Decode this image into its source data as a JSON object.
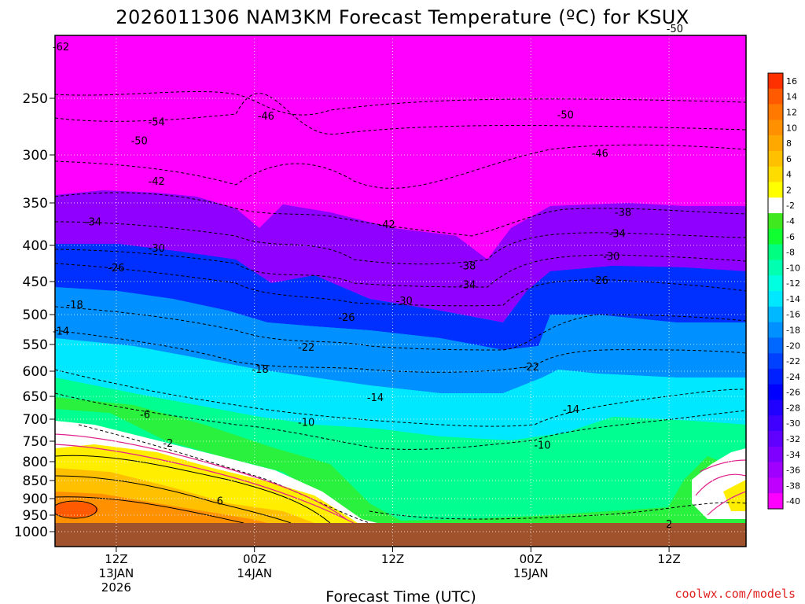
{
  "chart_data": {
    "type": "heatmap",
    "title": "2026011306 NAM3KM Forecast Temperature (ºC) for KSUX",
    "xlabel": "Forecast Time (UTC)",
    "credit": "coolwx.com/models",
    "y_ticks": [
      "250",
      "300",
      "350",
      "400",
      "450",
      "500",
      "550",
      "600",
      "650",
      "700",
      "750",
      "800",
      "850",
      "900",
      "950",
      "1000"
    ],
    "y_tick_values": [
      250,
      300,
      350,
      400,
      450,
      500,
      550,
      600,
      650,
      700,
      750,
      800,
      850,
      900,
      950,
      1000
    ],
    "x_ticks": [
      {
        "label": "12Z",
        "sub1": "13JAN",
        "sub2": "2026",
        "hour": 6
      },
      {
        "label": "00Z",
        "sub1": "14JAN",
        "sub2": "",
        "hour": 18
      },
      {
        "label": "12Z",
        "sub1": "",
        "sub2": "",
        "hour": 30
      },
      {
        "label": "00Z",
        "sub1": "15JAN",
        "sub2": "",
        "hour": 42
      },
      {
        "label": "12Z",
        "sub1": "",
        "sub2": "",
        "hour": 54
      }
    ],
    "xlim": [
      0,
      60
    ],
    "colorbar": {
      "labels": [
        "16",
        "14",
        "12",
        "10",
        "8",
        "6",
        "4",
        "2",
        "-2",
        "-4",
        "-6",
        "-8",
        "-10",
        "-12",
        "-14",
        "-16",
        "-18",
        "-20",
        "-22",
        "-24",
        "-26",
        "-28",
        "-30",
        "-32",
        "-34",
        "-36",
        "-38",
        "-40"
      ],
      "colors": [
        "#ff3000",
        "#ff5a00",
        "#ff7800",
        "#ff9000",
        "#ffa800",
        "#ffc000",
        "#ffdc00",
        "#ffff00",
        "#ffffff",
        "#40e820",
        "#10ff30",
        "#00ff80",
        "#00ffb0",
        "#00ffe0",
        "#00e8ff",
        "#00b8ff",
        "#0090ff",
        "#0068ff",
        "#0040ff",
        "#0020ff",
        "#0000ff",
        "#2000ff",
        "#4000ff",
        "#6000ff",
        "#8000ff",
        "#a000ff",
        "#c000ff",
        "#ff00ff"
      ]
    },
    "isotherm_labels": [
      {
        "text": "-62",
        "t": 1.2,
        "p": 212
      },
      {
        "text": "-54",
        "t": 9.5,
        "p": 270
      },
      {
        "text": "-50",
        "t": 8,
        "p": 287
      },
      {
        "text": "-46",
        "t": 19,
        "p": 265
      },
      {
        "text": "-50",
        "t": 45,
        "p": 264
      },
      {
        "text": "-50",
        "t": 54.5,
        "p": 200
      },
      {
        "text": "-46",
        "t": 48,
        "p": 299
      },
      {
        "text": "-42",
        "t": 9.5,
        "p": 327
      },
      {
        "text": "-42",
        "t": 29.5,
        "p": 375
      },
      {
        "text": "-38",
        "t": 50,
        "p": 361
      },
      {
        "text": "-38",
        "t": 36.5,
        "p": 428
      },
      {
        "text": "-34",
        "t": 4,
        "p": 372
      },
      {
        "text": "-34",
        "t": 49.5,
        "p": 386
      },
      {
        "text": "-34",
        "t": 36.5,
        "p": 455
      },
      {
        "text": "-30",
        "t": 9.5,
        "p": 404
      },
      {
        "text": "-30",
        "t": 49,
        "p": 415
      },
      {
        "text": "-30",
        "t": 31,
        "p": 479
      },
      {
        "text": "-26",
        "t": 6,
        "p": 431
      },
      {
        "text": "-26",
        "t": 48,
        "p": 449
      },
      {
        "text": "-26",
        "t": 26,
        "p": 505
      },
      {
        "text": "-18",
        "t": 2.4,
        "p": 485
      },
      {
        "text": "-14",
        "t": 1.2,
        "p": 528
      },
      {
        "text": "-22",
        "t": 22.5,
        "p": 556
      },
      {
        "text": "-22",
        "t": 42,
        "p": 592
      },
      {
        "text": "-18",
        "t": 18.5,
        "p": 597
      },
      {
        "text": "-14",
        "t": 28.5,
        "p": 653
      },
      {
        "text": "-14",
        "t": 45.5,
        "p": 679
      },
      {
        "text": "-10",
        "t": 22.5,
        "p": 708
      },
      {
        "text": "-10",
        "t": 43,
        "p": 760
      },
      {
        "text": "-6",
        "t": 8.5,
        "p": 690
      },
      {
        "text": "-2",
        "t": 10.5,
        "p": 756
      },
      {
        "text": "6",
        "t": 15,
        "p": 908
      },
      {
        "text": "2",
        "t": 54,
        "p": 978
      }
    ]
  }
}
